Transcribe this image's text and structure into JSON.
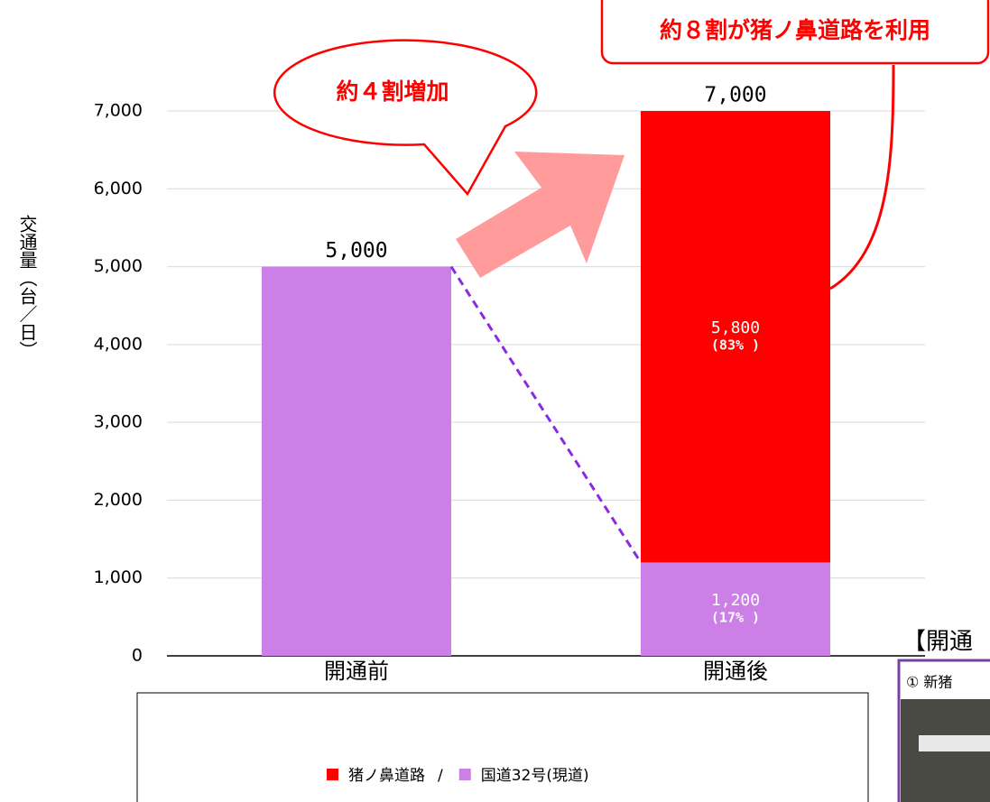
{
  "chart_data": {
    "type": "stacked_bar",
    "y_label": "交通量（台／日）",
    "categories": [
      "開通前",
      "開通後"
    ],
    "series": [
      {
        "name": "猪ノ鼻道路",
        "color": "#ff0000",
        "values": [
          null,
          5800
        ],
        "value_labels": [
          null,
          "5,800"
        ],
        "shares": [
          null,
          83
        ],
        "share_labels": [
          null,
          "(83% )"
        ]
      },
      {
        "name": "国道32号(現道)",
        "color": "#cc7fe6",
        "values": [
          5000,
          1200
        ],
        "value_labels": [
          null,
          "1,200"
        ],
        "shares": [
          null,
          17
        ],
        "share_labels": [
          null,
          "(17% )"
        ]
      }
    ],
    "totals": [
      5000,
      7000
    ],
    "total_labels": [
      "5,000",
      "7,000"
    ],
    "ylim": [
      0,
      7000
    ],
    "yticks": [
      0,
      {
        "value": 1000,
        "label": "1,000"
      },
      {
        "value": 2000,
        "label": "2,000"
      },
      {
        "value": 3000,
        "label": "3,000"
      },
      {
        "value": 4000,
        "label": "4,000"
      },
      {
        "value": 5000,
        "label": "5,000"
      },
      {
        "value": 6000,
        "label": "6,000"
      },
      {
        "value": 7000,
        "label": "7,000"
      }
    ],
    "grid": true,
    "legend_separator": "/",
    "annotations": {
      "increase": "約４割増加",
      "share": "約８割が猪ノ鼻道路を利用"
    }
  },
  "side_panel": {
    "heading": "【開通",
    "caption": "① 新猪"
  }
}
